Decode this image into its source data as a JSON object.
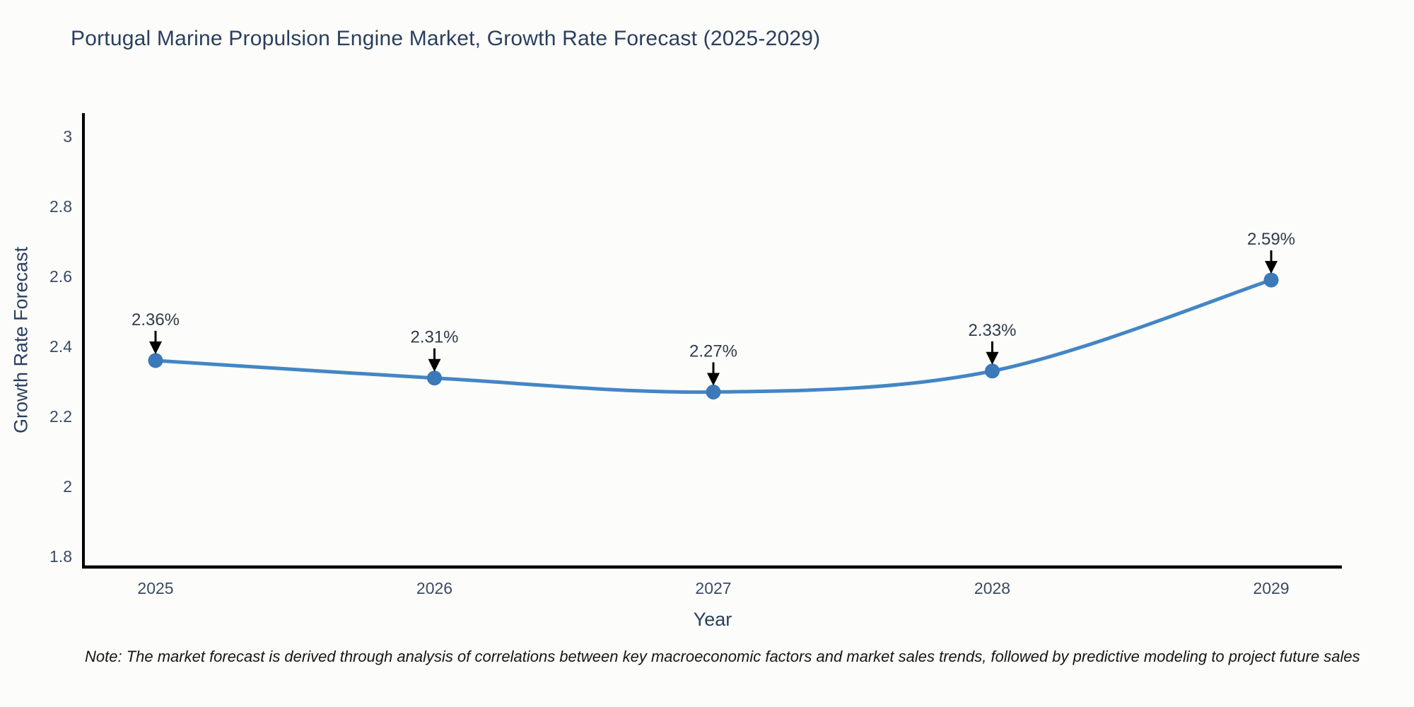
{
  "chart_data": {
    "type": "line",
    "title": "Portugal Marine Propulsion Engine Market, Growth Rate Forecast (2025-2029)",
    "xlabel": "Year",
    "ylabel": "Growth Rate Forecast",
    "categories": [
      "2025",
      "2026",
      "2027",
      "2028",
      "2029"
    ],
    "values": [
      2.36,
      2.31,
      2.27,
      2.33,
      2.59
    ],
    "point_labels": [
      "2.36%",
      "2.31%",
      "2.27%",
      "2.33%",
      "2.59%"
    ],
    "yticks": [
      1.8,
      2,
      2.2,
      2.4,
      2.6,
      2.8,
      3
    ],
    "ytick_labels": [
      "1.8",
      "2",
      "2.2",
      "2.4",
      "2.6",
      "2.8",
      "3"
    ],
    "ylim": [
      1.77,
      3.067
    ],
    "grid": false,
    "legend": false,
    "line_shape": "spline",
    "colors": {
      "line": "#4386c5",
      "marker": "#3b79b8",
      "arrow": "#000000",
      "axis": "#000000",
      "title_text": "#2a3f5f",
      "tick_text": "#3b4a63",
      "annotation_text": "#2f3b4c"
    }
  },
  "note": {
    "text": "Note: The market forecast is derived through analysis of correlations between key macroeconomic factors and market sales trends, followed by predictive modeling to project future sales"
  }
}
